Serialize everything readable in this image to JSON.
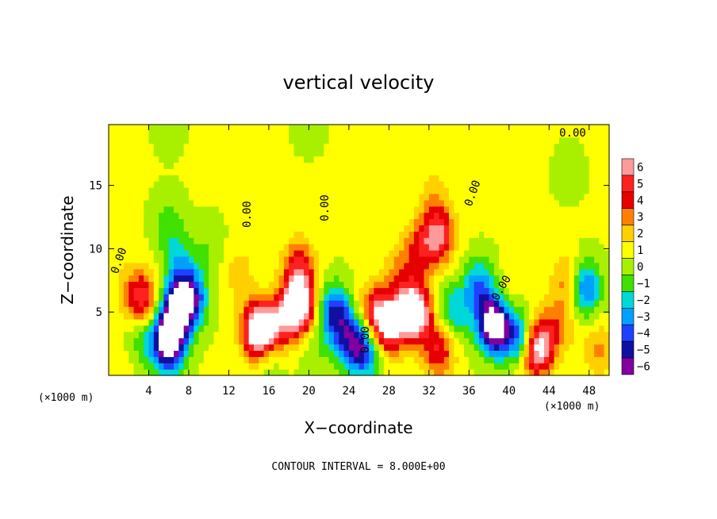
{
  "chart_data": {
    "type": "heatmap",
    "title": "vertical velocity",
    "xlabel": "X−coordinate",
    "ylabel": "Z−coordinate",
    "x_unit_left": "(×1000 m)",
    "x_unit_right": "(×1000 m)",
    "xlim": [
      0,
      50
    ],
    "ylim": [
      0,
      19.8
    ],
    "x_ticks": [
      "4",
      "8",
      "12",
      "16",
      "20",
      "24",
      "28",
      "32",
      "36",
      "40",
      "44",
      "48"
    ],
    "y_ticks": [
      "5",
      "10",
      "15"
    ],
    "footer": "CONTOUR INTERVAL = 8.000E+00",
    "contour_labels": [
      "0.00",
      "0.00",
      "0.00",
      "0.00",
      "0.00",
      "0.00",
      "0.00"
    ],
    "colorbar": {
      "labels": [
        "6",
        "5",
        "4",
        "3",
        "2",
        "1",
        "0",
        "−1",
        "−2",
        "−3",
        "−4",
        "−5",
        "−6"
      ],
      "colors": [
        "#ff9a9a",
        "#ff2020",
        "#e60000",
        "#ff8000",
        "#ffd000",
        "#ffff00",
        "#a8f000",
        "#40e000",
        "#00d8d8",
        "#00a0ff",
        "#2040ff",
        "#1010a0",
        "#8000a0"
      ]
    },
    "field": {
      "background": 0.6,
      "cells": [
        {
          "x": 1,
          "z": 0.8,
          "w": 0.6
        },
        {
          "x": 2,
          "z": 7,
          "w": 1.2
        },
        {
          "x": 3.5,
          "z": 3,
          "w": -2
        },
        {
          "x": 3.5,
          "z": 6,
          "w": 4.5
        },
        {
          "x": 6,
          "z": 2.5,
          "w": -8
        },
        {
          "x": 6.5,
          "z": 5,
          "w": -6
        },
        {
          "x": 8,
          "z": 6,
          "w": -7
        },
        {
          "x": 7,
          "z": 9,
          "w": -2.5
        },
        {
          "x": 6,
          "z": 12,
          "w": -1.5
        },
        {
          "x": 10,
          "z": 10,
          "w": -1
        },
        {
          "x": 13,
          "z": 8,
          "w": 1.5
        },
        {
          "x": 15,
          "z": 3.5,
          "w": 9
        },
        {
          "x": 16,
          "z": 2,
          "w": -2
        },
        {
          "x": 17,
          "z": 4,
          "w": 4
        },
        {
          "x": 19,
          "z": 5.5,
          "w": 8
        },
        {
          "x": 19,
          "z": 8.5,
          "w": 4
        },
        {
          "x": 20.5,
          "z": 2,
          "w": -1
        },
        {
          "x": 22.5,
          "z": 5,
          "w": -5
        },
        {
          "x": 24,
          "z": 3,
          "w": -4
        },
        {
          "x": 25.5,
          "z": 2,
          "w": -5
        },
        {
          "x": 26.5,
          "z": 5,
          "w": 4
        },
        {
          "x": 28,
          "z": 4,
          "w": 6
        },
        {
          "x": 30.5,
          "z": 5,
          "w": 9
        },
        {
          "x": 29,
          "z": 8,
          "w": 2
        },
        {
          "x": 31,
          "z": 10,
          "w": 3
        },
        {
          "x": 33,
          "z": 11,
          "w": 5
        },
        {
          "x": 32.5,
          "z": 14,
          "w": 1.5
        },
        {
          "x": 33,
          "z": 2,
          "w": 4
        },
        {
          "x": 34.5,
          "z": 5,
          "w": -3
        },
        {
          "x": 38.5,
          "z": 4,
          "w": -9
        },
        {
          "x": 37,
          "z": 7,
          "w": -4
        },
        {
          "x": 40,
          "z": 6.5,
          "w": 1
        },
        {
          "x": 41,
          "z": 3,
          "w": -5
        },
        {
          "x": 42,
          "z": 1.5,
          "w": 2
        },
        {
          "x": 43,
          "z": 2.5,
          "w": 6
        },
        {
          "x": 45,
          "z": 4,
          "w": 2
        },
        {
          "x": 46,
          "z": 7.5,
          "w": 3
        },
        {
          "x": 47.5,
          "z": 7,
          "w": -5
        },
        {
          "x": 49,
          "z": 2,
          "w": 2
        },
        {
          "x": 46,
          "z": 16,
          "w": -0.5
        },
        {
          "x": 6,
          "z": 19.5,
          "w": -0.5
        },
        {
          "x": 20,
          "z": 19.5,
          "w": -0.4
        }
      ]
    }
  }
}
